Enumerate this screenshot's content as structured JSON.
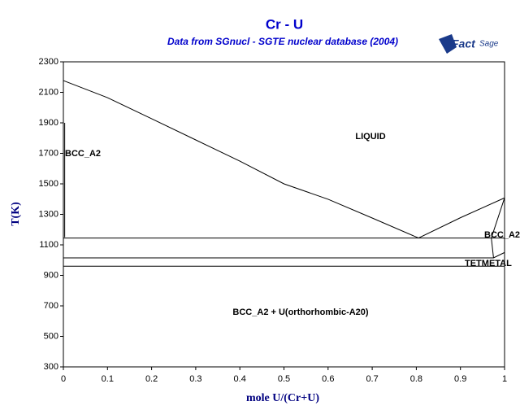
{
  "chart_data": {
    "type": "line",
    "title": "Cr - U",
    "subtitle": "Data from SGnucl - SGTE nuclear database (2004)",
    "logo": {
      "part1": "Fact",
      "part2": "Sage"
    },
    "x_label": "mole U/(Cr+U)",
    "y_label": "T(K)",
    "xlim": [
      0,
      1
    ],
    "ylim": [
      300,
      2300
    ],
    "xticks": [
      0,
      0.1,
      0.2,
      0.3,
      0.4,
      0.5,
      0.6,
      0.7,
      0.8,
      0.9,
      1
    ],
    "yticks": [
      300,
      500,
      700,
      900,
      1100,
      1300,
      1500,
      1700,
      1900,
      2100,
      2300
    ],
    "series": [
      {
        "color": "#000000",
        "x": [
          0,
          0.1,
          0.2,
          0.3,
          0.4,
          0.5,
          0.6,
          0.7,
          0.805,
          0.9,
          1
        ],
        "values": [
          2177,
          2065,
          1927,
          1788,
          1649,
          1500,
          1399,
          1276,
          1145,
          1278,
          1408
        ]
      },
      {
        "color": "#000000",
        "x": [
          0,
          1
        ],
        "values": [
          1145,
          1145
        ]
      },
      {
        "color": "#000000",
        "x": [
          0,
          0.975,
          1
        ],
        "values": [
          1015,
          1015,
          1050
        ]
      },
      {
        "color": "#000000",
        "x": [
          0,
          1
        ],
        "values": [
          960,
          960
        ]
      },
      {
        "color": "#000000",
        "x": [
          0.003,
          0.003
        ],
        "values": [
          1900,
          1150
        ]
      },
      {
        "color": "#000000",
        "x": [
          1,
          0.97,
          0.975
        ],
        "values": [
          1408,
          1145,
          1015
        ]
      }
    ],
    "annotations": [
      "LIQUID",
      "BCC_A2",
      "BCC_A2",
      "TETMETAL",
      "BCC_A2 + U(orthorhombic-A20)"
    ]
  }
}
